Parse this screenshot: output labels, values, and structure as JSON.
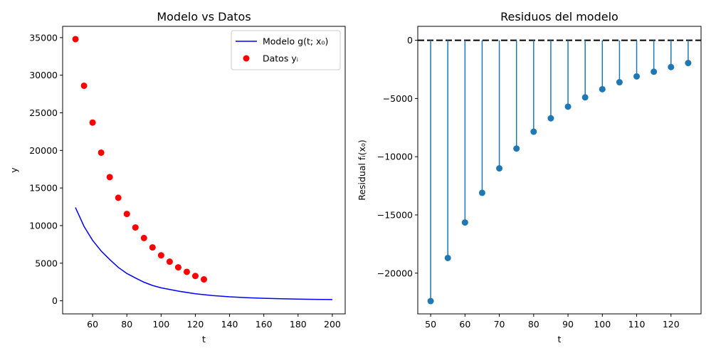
{
  "chart_data": [
    {
      "type": "line",
      "title": "Modelo vs Datos",
      "xlabel": "t",
      "ylabel": "y",
      "xlim": [
        42.5,
        207.5
      ],
      "ylim": [
        -1740,
        36500
      ],
      "xticks": [
        60,
        80,
        100,
        120,
        140,
        160,
        180,
        200
      ],
      "xtick_labels": [
        "60",
        "80",
        "100",
        "120",
        "140",
        "160",
        "180",
        "200"
      ],
      "yticks": [
        0,
        5000,
        10000,
        15000,
        20000,
        25000,
        30000,
        35000
      ],
      "ytick_labels": [
        "0",
        "5000",
        "10000",
        "15000",
        "20000",
        "25000",
        "30000",
        "35000"
      ],
      "legend_position": "top-right",
      "series": [
        {
          "name": "Modelo g(t; x₀)",
          "kind": "line",
          "color": "#0000ff",
          "x": [
            50,
            55,
            60,
            65,
            70,
            75,
            80,
            85,
            90,
            95,
            100,
            110,
            120,
            130,
            140,
            150,
            160,
            170,
            180,
            190,
            200
          ],
          "y": [
            12400,
            9890,
            8040,
            6630,
            5480,
            4440,
            3640,
            3030,
            2470,
            2040,
            1720,
            1290,
            930,
            700,
            530,
            420,
            330,
            270,
            230,
            190,
            160
          ]
        },
        {
          "name": "Datos yᵢ",
          "kind": "scatter",
          "color": "#ff0000",
          "x": [
            50,
            55,
            60,
            65,
            70,
            75,
            80,
            85,
            90,
            95,
            100,
            105,
            110,
            115,
            120,
            125
          ],
          "y": [
            34800,
            28600,
            23700,
            19700,
            16450,
            13700,
            11550,
            9750,
            8350,
            7100,
            6050,
            5200,
            4450,
            3850,
            3300,
            2850
          ]
        }
      ]
    },
    {
      "type": "stem",
      "title": "Residuos del modelo",
      "xlabel": "t",
      "ylabel": "Residual fᵢ(x₀)",
      "xlim": [
        46.25,
        128.75
      ],
      "ylim": [
        -23500,
        1200
      ],
      "xticks": [
        50,
        60,
        70,
        80,
        90,
        100,
        110,
        120
      ],
      "xtick_labels": [
        "50",
        "60",
        "70",
        "80",
        "90",
        "100",
        "110",
        "120"
      ],
      "yticks": [
        0,
        -5000,
        -10000,
        -15000,
        -20000
      ],
      "ytick_labels": [
        "0",
        "−5000",
        "−10000",
        "−15000",
        "−20000"
      ],
      "zero_line": {
        "color": "#000000",
        "style": "dashed"
      },
      "series": [
        {
          "color": "#1f77b4",
          "x": [
            50,
            55,
            60,
            65,
            70,
            75,
            80,
            85,
            90,
            95,
            100,
            105,
            110,
            115,
            120,
            125
          ],
          "y": [
            -22400,
            -18700,
            -15650,
            -13100,
            -11000,
            -9300,
            -7850,
            -6700,
            -5700,
            -4900,
            -4200,
            -3600,
            -3100,
            -2700,
            -2300,
            -1950
          ]
        }
      ]
    }
  ]
}
